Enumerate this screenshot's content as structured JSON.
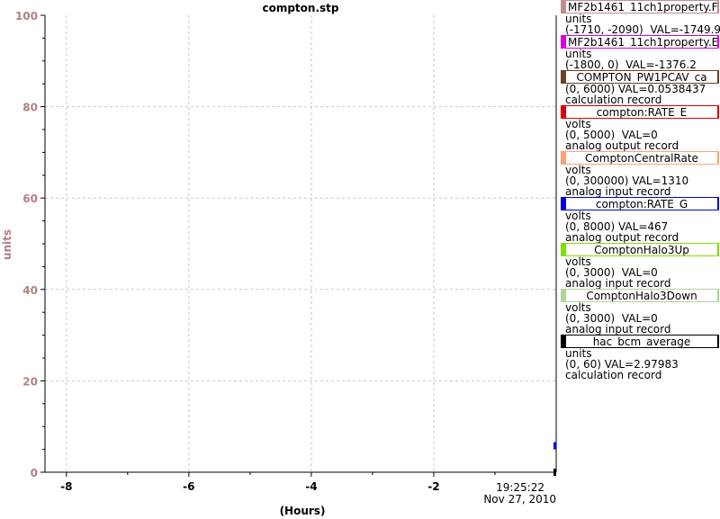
{
  "chart_data": {
    "type": "line",
    "title": "compton.stp",
    "ylabel": "units",
    "xlabel": "(Hours)",
    "ylim": [
      0,
      100
    ],
    "xlim": [
      -8.35,
      0
    ],
    "y_ticks": [
      "0",
      "20",
      "40",
      "60",
      "80",
      "100"
    ],
    "x_ticks": [
      "-8",
      "-6",
      "-4",
      "-2"
    ],
    "x_end_label_time": "19:25:22",
    "x_end_label_date": "Nov 27, 2010",
    "grid": true,
    "series": [
      {
        "name": "MF2b1461_11ch1property.F",
        "color": "#bc8f8f",
        "x": [
          0
        ],
        "y": [
          0
        ]
      },
      {
        "name": "MF2b1461_11ch1property.E",
        "color": "#dd00dd",
        "x": [
          0
        ],
        "y": [
          0
        ]
      },
      {
        "name": "COMPTON_PW1PCAV_ca",
        "color": "#6b4226",
        "x": [
          0
        ],
        "y": [
          0
        ]
      },
      {
        "name": "compton:RATE_E",
        "color": "#dd0000",
        "x": [
          0
        ],
        "y": [
          0
        ]
      },
      {
        "name": "ComptonCentralRate",
        "color": "#ffa07a",
        "x": [
          0
        ],
        "y": [
          0
        ]
      },
      {
        "name": "compton:RATE_G",
        "color": "#0000dd",
        "x": [
          0
        ],
        "y": [
          5.8
        ]
      },
      {
        "name": "ComptonHalo3Up",
        "color": "#7fdd00",
        "x": [
          0
        ],
        "y": [
          0
        ]
      },
      {
        "name": "ComptonHalo3Down",
        "color": "#b4d29a",
        "x": [
          0
        ],
        "y": [
          0
        ]
      },
      {
        "name": "hac_bcm_average",
        "color": "#000000",
        "x": [
          0
        ],
        "y": [
          0
        ]
      }
    ],
    "legend": [
      {
        "name": "MF2b1461_11ch1property.F",
        "color": "#bc8f8f",
        "lines": [
          "units",
          "(-1710, -2090)  VAL=-1749.9"
        ]
      },
      {
        "name": "MF2b1461_11ch1property.E",
        "color": "#dd00dd",
        "lines": [
          "units",
          "(-1800, 0)  VAL=-1376.2"
        ]
      },
      {
        "name": "COMPTON_PW1PCAV_ca",
        "color": "#6b4226",
        "lines": [
          "(0, 6000) VAL=0.0538437",
          "calculation record"
        ]
      },
      {
        "name": "compton:RATE_E",
        "color": "#dd0000",
        "lines": [
          "volts",
          "(0, 5000)  VAL=0",
          "analog output record"
        ]
      },
      {
        "name": "ComptonCentralRate",
        "color": "#ffa07a",
        "lines": [
          "volts",
          "(0, 300000) VAL=1310",
          "analog input record"
        ]
      },
      {
        "name": "compton:RATE_G",
        "color": "#0000dd",
        "lines": [
          "volts",
          "(0, 8000) VAL=467",
          "analog output record"
        ]
      },
      {
        "name": "ComptonHalo3Up",
        "color": "#7fdd00",
        "lines": [
          "volts",
          "(0, 3000)  VAL=0",
          "analog input record"
        ]
      },
      {
        "name": "ComptonHalo3Down",
        "color": "#b4d29a",
        "lines": [
          "volts",
          "(0, 3000)  VAL=0",
          "analog input record"
        ]
      },
      {
        "name": "hac_bcm_average",
        "color": "#000000",
        "lines": [
          "units",
          "(0, 60) VAL=2.97983",
          "calculation record"
        ]
      }
    ],
    "colors": {
      "ylabel": "#b08080",
      "ytick_labels": "#b08080",
      "grid": "#c8c8c8",
      "axis": "#000000"
    }
  }
}
